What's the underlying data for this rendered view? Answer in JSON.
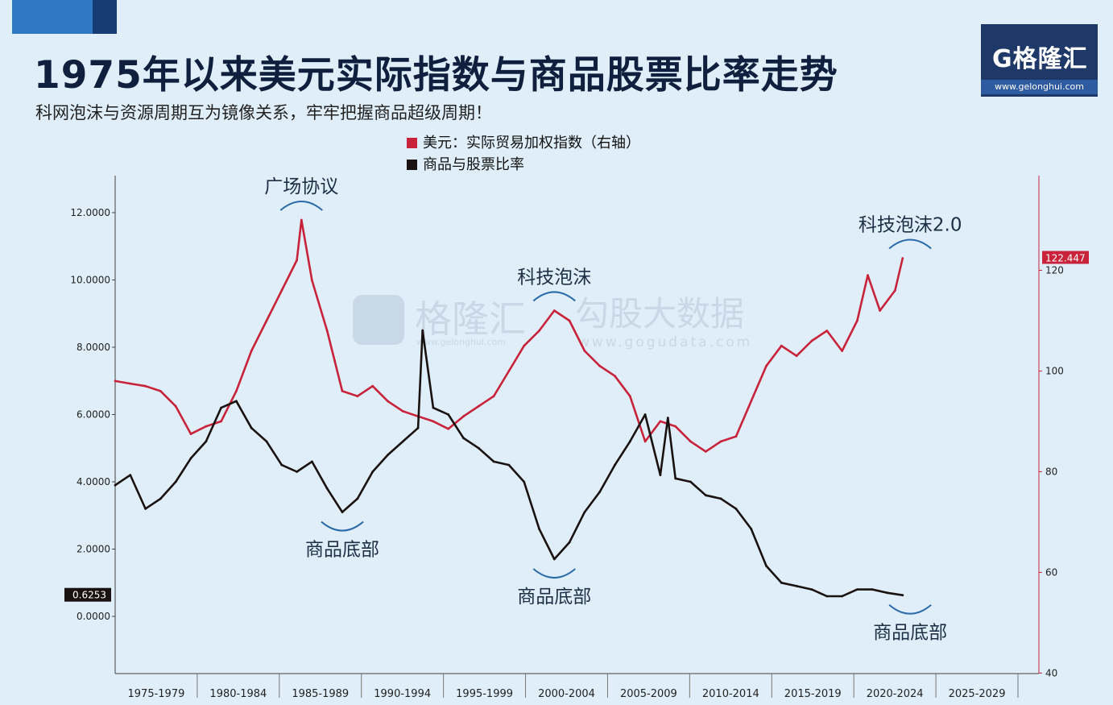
{
  "header": {
    "title": "1975年以来美元实际指数与商品股票比率走势",
    "subtitle": "科网泡沫与资源周期互为镜像关系，牢牢把握商品超级周期！",
    "logo_text": "G格隆汇",
    "logo_url": "www.gelonghui.com"
  },
  "colors": {
    "usd_series": "#c8233a",
    "ratio_series": "#1a1210",
    "anno_arc": "#2b6aa8",
    "background": "#dfeef8"
  },
  "watermark": {
    "brand": "格隆汇",
    "brand_url": "www.gelonghui.com",
    "text": "勾股大数据",
    "url": "www.gogudata.com"
  },
  "chart_data": {
    "type": "line",
    "title": "",
    "legend": [
      {
        "label": "美元：实际贸易加权指数（右轴）",
        "color": "#c8233a"
      },
      {
        "label": "商品与股票比率",
        "color": "#1a1210"
      }
    ],
    "legend_position": "top-center",
    "x_categories": [
      "1975-1979",
      "1980-1984",
      "1985-1989",
      "1990-1994",
      "1995-1999",
      "2000-2004",
      "2005-2009",
      "2010-2014",
      "2015-2019",
      "2020-2024",
      "2025-2029"
    ],
    "xlim": [
      1973,
      2034
    ],
    "y_left": {
      "ticks": [
        "12.0000",
        "10.0000",
        "8.0000",
        "6.0000",
        "4.0000",
        "2.0000",
        "0.0000"
      ],
      "tick_values": [
        12,
        10,
        8,
        6,
        4,
        2,
        0
      ],
      "ylim": [
        -1.7,
        13.1
      ],
      "last_value_label": "0.6253"
    },
    "y_right": {
      "ticks": [
        "120",
        "100",
        "80",
        "60",
        "40"
      ],
      "tick_values": [
        120,
        100,
        80,
        60,
        40
      ],
      "ylim": [
        39.9,
        138.8
      ],
      "last_value_label": "122.447"
    },
    "series": [
      {
        "name": "美元：实际贸易加权指数（右轴）",
        "axis": "right",
        "points": [
          [
            1973.0,
            98.0
          ],
          [
            1974.0,
            97.5
          ],
          [
            1975.0,
            97.0
          ],
          [
            1976.0,
            96.0
          ],
          [
            1977.0,
            93.0
          ],
          [
            1978.0,
            87.5
          ],
          [
            1979.0,
            89.0
          ],
          [
            1980.0,
            90.0
          ],
          [
            1981.0,
            96.0
          ],
          [
            1982.0,
            104.0
          ],
          [
            1983.0,
            110.0
          ],
          [
            1984.0,
            116.0
          ],
          [
            1985.0,
            122.0
          ],
          [
            1985.3,
            130.0
          ],
          [
            1986.0,
            118.0
          ],
          [
            1987.0,
            108.0
          ],
          [
            1987.5,
            102.0
          ],
          [
            1988.0,
            96.0
          ],
          [
            1989.0,
            95.0
          ],
          [
            1990.0,
            97.0
          ],
          [
            1991.0,
            94.0
          ],
          [
            1992.0,
            92.0
          ],
          [
            1993.0,
            91.0
          ],
          [
            1994.0,
            90.0
          ],
          [
            1995.0,
            88.5
          ],
          [
            1996.0,
            91.0
          ],
          [
            1997.0,
            93.0
          ],
          [
            1998.0,
            95.0
          ],
          [
            1999.0,
            100.0
          ],
          [
            2000.0,
            105.0
          ],
          [
            2001.0,
            108.0
          ],
          [
            2002.0,
            112.0
          ],
          [
            2003.0,
            110.0
          ],
          [
            2004.0,
            104.0
          ],
          [
            2005.0,
            101.0
          ],
          [
            2006.0,
            99.0
          ],
          [
            2007.0,
            95.0
          ],
          [
            2008.0,
            86.0
          ],
          [
            2009.0,
            90.0
          ],
          [
            2010.0,
            89.0
          ],
          [
            2011.0,
            86.0
          ],
          [
            2012.0,
            84.0
          ],
          [
            2013.0,
            86.0
          ],
          [
            2014.0,
            87.0
          ],
          [
            2015.0,
            94.0
          ],
          [
            2016.0,
            101.0
          ],
          [
            2017.0,
            105.0
          ],
          [
            2018.0,
            103.0
          ],
          [
            2019.0,
            106.0
          ],
          [
            2020.0,
            108.0
          ],
          [
            2021.0,
            104.0
          ],
          [
            2022.0,
            110.0
          ],
          [
            2022.7,
            119.0
          ],
          [
            2023.5,
            112.0
          ],
          [
            2024.5,
            116.0
          ],
          [
            2025.0,
            122.4
          ]
        ]
      },
      {
        "name": "商品与股票比率",
        "axis": "left",
        "points": [
          [
            1973.0,
            3.9
          ],
          [
            1974.0,
            4.2
          ],
          [
            1975.0,
            3.2
          ],
          [
            1976.0,
            3.5
          ],
          [
            1977.0,
            4.0
          ],
          [
            1978.0,
            4.7
          ],
          [
            1979.0,
            5.2
          ],
          [
            1980.0,
            6.2
          ],
          [
            1981.0,
            6.4
          ],
          [
            1982.0,
            5.6
          ],
          [
            1983.0,
            5.2
          ],
          [
            1984.0,
            4.5
          ],
          [
            1985.0,
            4.3
          ],
          [
            1986.0,
            4.6
          ],
          [
            1987.0,
            3.8
          ],
          [
            1988.0,
            3.1
          ],
          [
            1989.0,
            3.5
          ],
          [
            1990.0,
            4.3
          ],
          [
            1991.0,
            4.8
          ],
          [
            1992.0,
            5.2
          ],
          [
            1993.0,
            5.6
          ],
          [
            1993.3,
            8.5
          ],
          [
            1994.0,
            6.2
          ],
          [
            1995.0,
            6.0
          ],
          [
            1996.0,
            5.3
          ],
          [
            1997.0,
            5.0
          ],
          [
            1998.0,
            4.6
          ],
          [
            1999.0,
            4.5
          ],
          [
            2000.0,
            4.0
          ],
          [
            2001.0,
            2.6
          ],
          [
            2002.0,
            1.7
          ],
          [
            2003.0,
            2.2
          ],
          [
            2004.0,
            3.1
          ],
          [
            2005.0,
            3.7
          ],
          [
            2006.0,
            4.5
          ],
          [
            2007.0,
            5.2
          ],
          [
            2008.0,
            6.0
          ],
          [
            2009.0,
            4.2
          ],
          [
            2009.5,
            5.9
          ],
          [
            2010.0,
            4.1
          ],
          [
            2011.0,
            4.0
          ],
          [
            2012.0,
            3.6
          ],
          [
            2013.0,
            3.5
          ],
          [
            2014.0,
            3.2
          ],
          [
            2015.0,
            2.6
          ],
          [
            2016.0,
            1.5
          ],
          [
            2017.0,
            1.0
          ],
          [
            2018.0,
            0.9
          ],
          [
            2019.0,
            0.8
          ],
          [
            2020.0,
            0.6
          ],
          [
            2021.0,
            0.6
          ],
          [
            2022.0,
            0.8
          ],
          [
            2023.0,
            0.8
          ],
          [
            2024.0,
            0.7
          ],
          [
            2025.0,
            0.63
          ]
        ]
      }
    ],
    "annotations": [
      {
        "text": "广场协议",
        "x": 1985.3,
        "axis": "right",
        "y": 130.0,
        "place": "above"
      },
      {
        "text": "商品底部",
        "x": 1988.0,
        "axis": "left",
        "y": 3.1,
        "place": "below"
      },
      {
        "text": "商品底部",
        "x": 2002.0,
        "axis": "left",
        "y": 1.7,
        "place": "below"
      },
      {
        "text": "科技泡沫",
        "x": 2002.0,
        "axis": "right",
        "y": 112.0,
        "place": "above"
      },
      {
        "text": "科技泡沫2.0",
        "x": 2025.5,
        "axis": "right",
        "y": 122.4,
        "place": "above"
      },
      {
        "text": "商品底部",
        "x": 2025.5,
        "axis": "left",
        "y": 0.63,
        "place": "below"
      }
    ]
  }
}
